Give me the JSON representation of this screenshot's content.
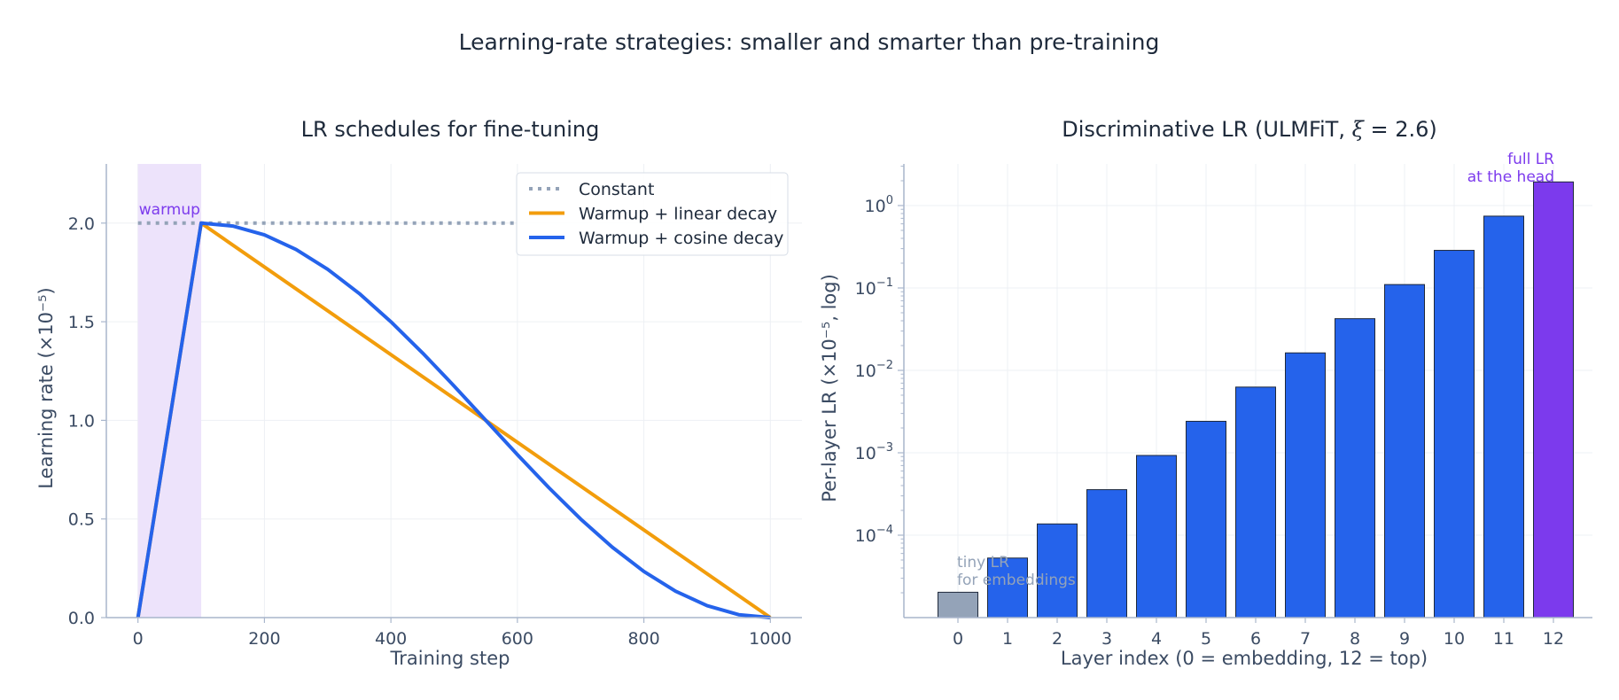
{
  "figure": {
    "suptitle": "Learning-rate strategies: smaller and smarter than pre-training"
  },
  "colors": {
    "axis": "#a9b6cc",
    "tick_text": "#3b4b63",
    "grid": "#edf0f4",
    "title": "#1e2a3b",
    "warmup_fill": "#ede3fb",
    "purple": "#7c3aed",
    "gray": "#94a3b8",
    "orange": "#f29d0c",
    "blue": "#2563eb",
    "bar_edge": "#1e293b"
  },
  "chart_data": [
    {
      "type": "line",
      "title": "LR schedules for fine-tuning",
      "xlabel": "Training step",
      "ylabel": "Learning rate (×10⁻⁵)",
      "xlim": [
        -50,
        1050
      ],
      "ylim": [
        0,
        2.3
      ],
      "xticks": [
        0,
        200,
        400,
        600,
        800,
        1000
      ],
      "yticks": [
        0.0,
        0.5,
        1.0,
        1.5,
        2.0
      ],
      "xtick_labels": [
        "0",
        "200",
        "400",
        "600",
        "800",
        "1000"
      ],
      "ytick_labels": [
        "0.0",
        "0.5",
        "1.0",
        "1.5",
        "2.0"
      ],
      "grid": true,
      "legend_position": "upper-right",
      "warmup_region": {
        "x": [
          0,
          100
        ],
        "label": "warmup"
      },
      "series": [
        {
          "name": "Constant",
          "style": "dotted",
          "color_key": "gray",
          "x": [
            0,
            100,
            200,
            300,
            400,
            500,
            600
          ],
          "y": [
            2.0,
            2.0,
            2.0,
            2.0,
            2.0,
            2.0,
            2.0
          ]
        },
        {
          "name": "Warmup + linear decay",
          "style": "solid",
          "color_key": "orange",
          "x": [
            0,
            100,
            1000
          ],
          "y": [
            0.0,
            2.0,
            0.0
          ]
        },
        {
          "name": "Warmup + cosine decay",
          "style": "solid",
          "color_key": "blue",
          "x": [
            0,
            100,
            150,
            200,
            250,
            300,
            350,
            400,
            450,
            500,
            550,
            600,
            650,
            700,
            750,
            800,
            850,
            900,
            950,
            1000
          ],
          "y": [
            0.0,
            2.0,
            1.985,
            1.94,
            1.866,
            1.766,
            1.643,
            1.5,
            1.342,
            1.174,
            1.0,
            0.826,
            0.658,
            0.5,
            0.357,
            0.234,
            0.134,
            0.06,
            0.015,
            0.0
          ]
        }
      ]
    },
    {
      "type": "bar",
      "title_prefix": "Discriminative LR (ULMFiT, ",
      "title_xi": "ξ",
      "title_suffix": " = 2.6)",
      "xlabel": "Layer index (0 = embedding, 12 = top)",
      "ylabel": "Per-layer LR (×10⁻⁵, log)",
      "yscale": "log",
      "ylim": [
        1e-05,
        3.2
      ],
      "ytick_exponents": [
        "0",
        "−1",
        "−2",
        "−3",
        "−4"
      ],
      "ytick_values": [
        1,
        0.1,
        0.01,
        0.001,
        0.0001
      ],
      "ytick_base": "10",
      "grid": true,
      "categories": [
        "0",
        "1",
        "2",
        "3",
        "4",
        "5",
        "6",
        "7",
        "8",
        "9",
        "10",
        "11",
        "12"
      ],
      "values": [
        2.03e-05,
        5.28e-05,
        0.000137,
        0.000357,
        0.000928,
        0.00241,
        0.00627,
        0.0163,
        0.0424,
        0.11,
        0.286,
        0.744,
        1.935
      ],
      "bar_color_keys": [
        "gray",
        "blue",
        "blue",
        "blue",
        "blue",
        "blue",
        "blue",
        "blue",
        "blue",
        "blue",
        "blue",
        "blue",
        "purple"
      ],
      "annotations": [
        {
          "lines": [
            "tiny LR",
            "for embeddings"
          ],
          "color_key": "gray",
          "anchor": "left"
        },
        {
          "lines": [
            "full LR",
            "at the head"
          ],
          "color_key": "purple",
          "anchor": "right"
        }
      ]
    }
  ]
}
